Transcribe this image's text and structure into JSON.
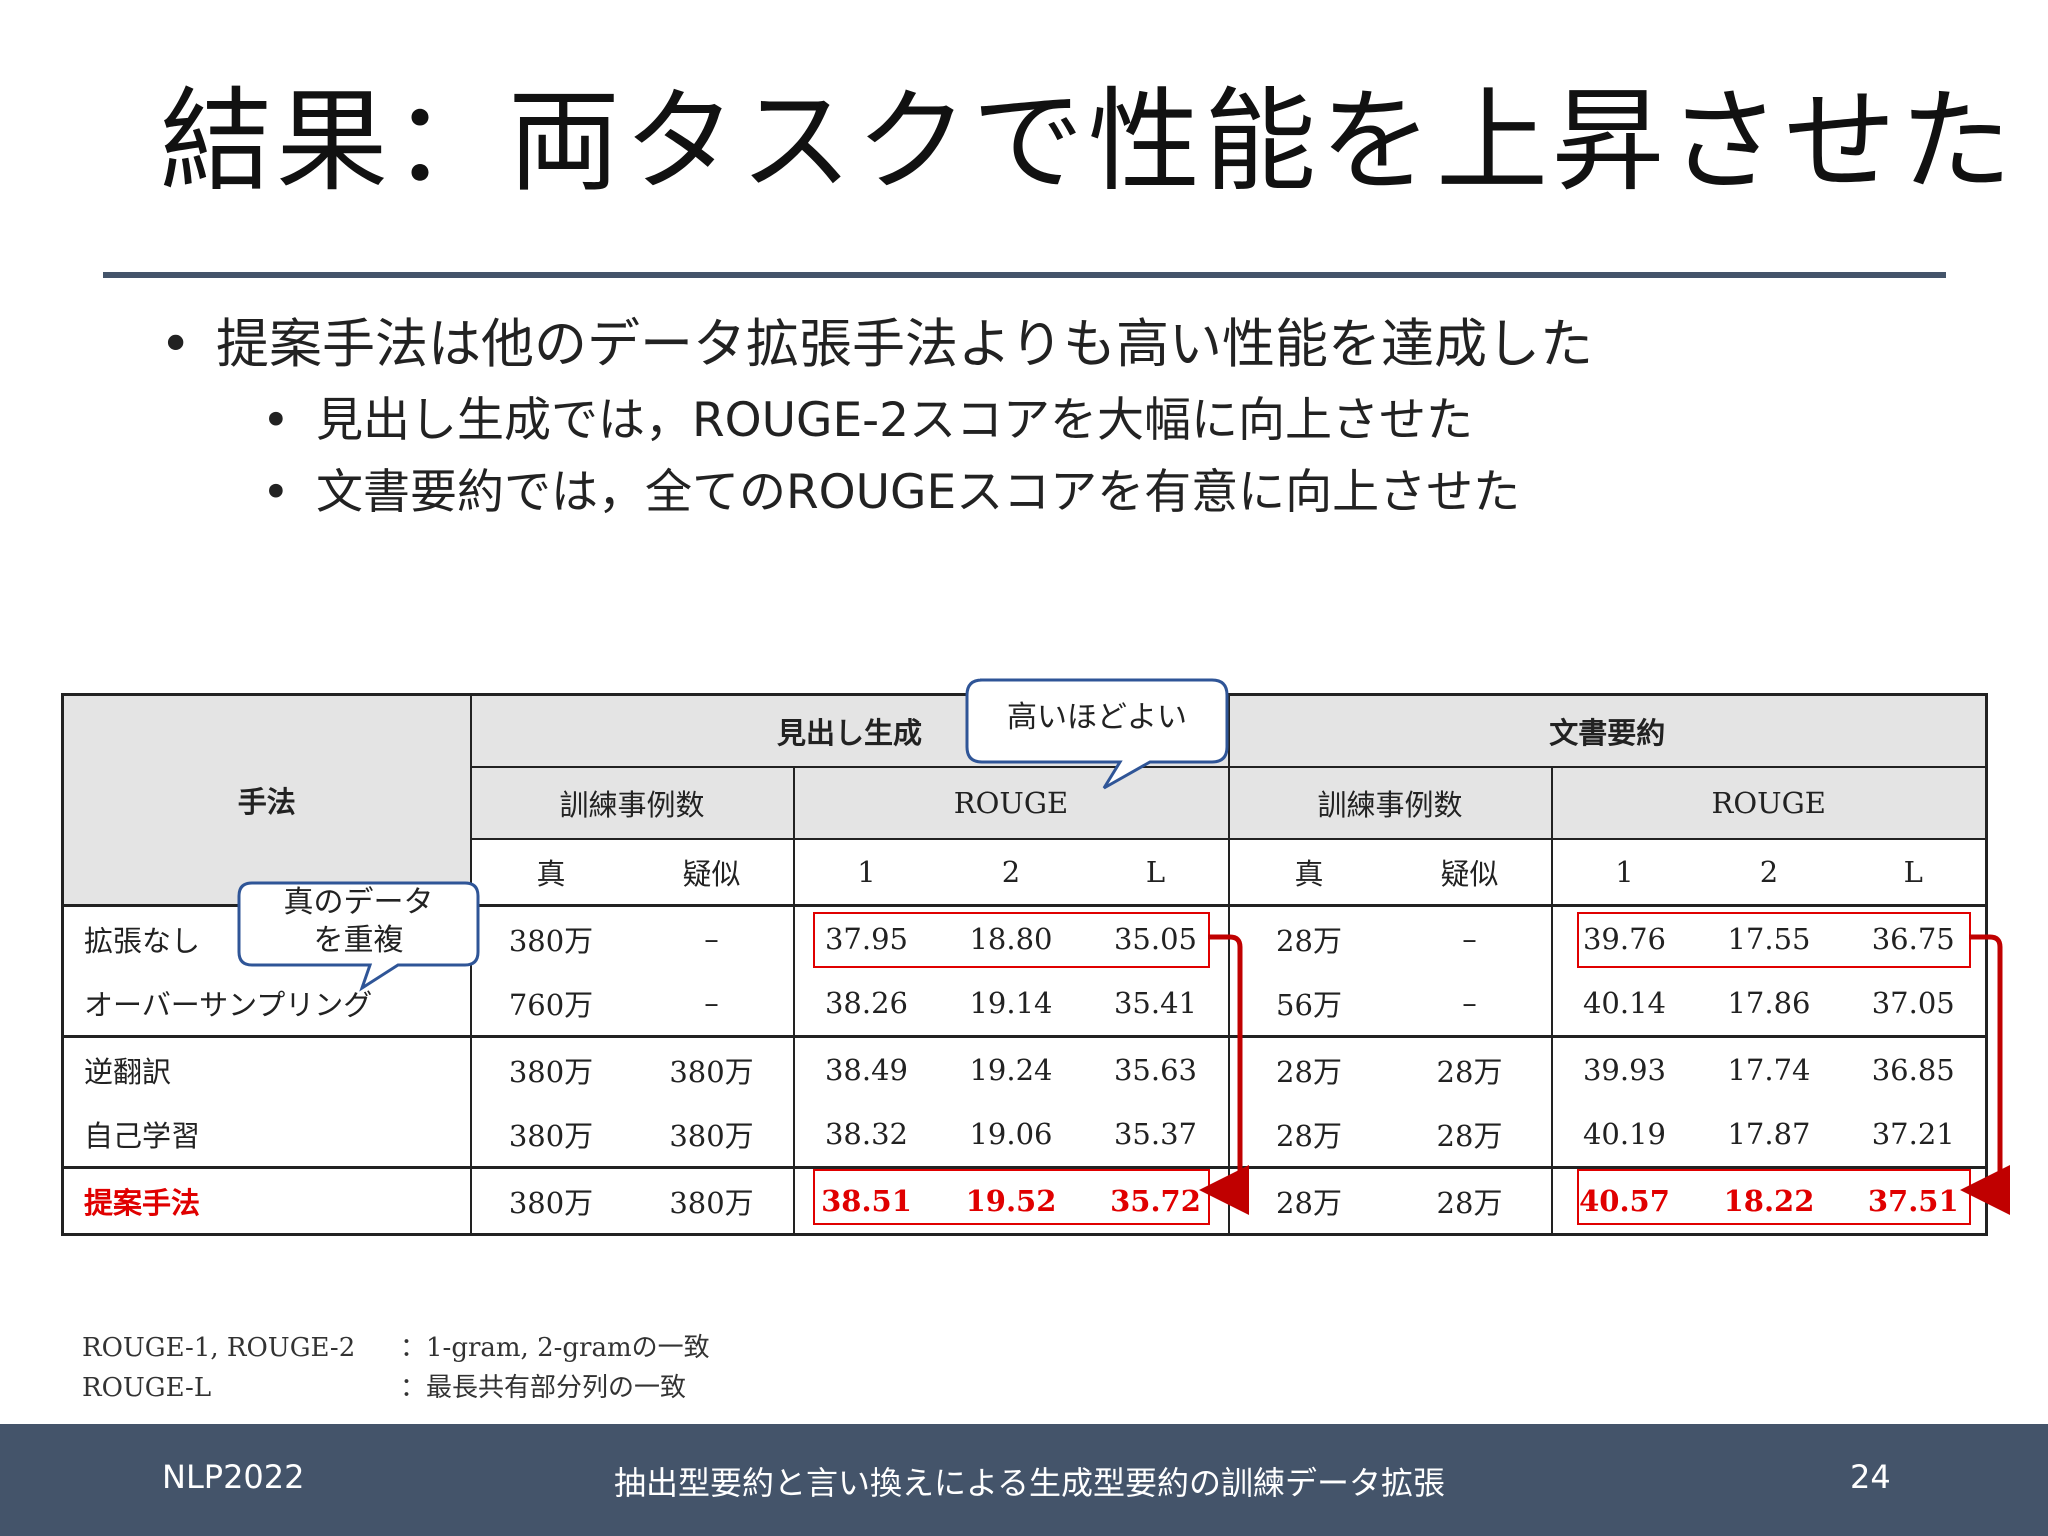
{
  "slide": {
    "title": "結果：両タスクで性能を上昇させた",
    "bullets": [
      {
        "text": "提案手法は他のデータ拡張手法よりも高い性能を達成した"
      },
      {
        "text": "見出し生成では，ROUGE-2スコアを大幅に向上させた"
      },
      {
        "text": "文書要約では，全てのROUGEスコアを有意に向上させた"
      }
    ]
  },
  "table": {
    "method_header": "手法",
    "task1": "見出し生成",
    "task2": "文書要約",
    "train_count_header": "訓練事例数",
    "rouge_header": "ROUGE",
    "sub_true": "真",
    "sub_pseudo": "疑似",
    "sub_1": "1",
    "sub_2": "2",
    "sub_L": "L",
    "rows": [
      {
        "method": "拡張なし",
        "h_true": "380万",
        "h_pseudo": "–",
        "h_r1": "37.95",
        "h_r2": "18.80",
        "h_rl": "35.05",
        "s_true": "28万",
        "s_pseudo": "–",
        "s_r1": "39.76",
        "s_r2": "17.55",
        "s_rl": "36.75"
      },
      {
        "method": "オーバーサンプリング",
        "h_true": "760万",
        "h_pseudo": "–",
        "h_r1": "38.26",
        "h_r2": "19.14",
        "h_rl": "35.41",
        "s_true": "56万",
        "s_pseudo": "–",
        "s_r1": "40.14",
        "s_r2": "17.86",
        "s_rl": "37.05"
      },
      {
        "method": "逆翻訳",
        "h_true": "380万",
        "h_pseudo": "380万",
        "h_r1": "38.49",
        "h_r2": "19.24",
        "h_rl": "35.63",
        "s_true": "28万",
        "s_pseudo": "28万",
        "s_r1": "39.93",
        "s_r2": "17.74",
        "s_rl": "36.85"
      },
      {
        "method": "自己学習",
        "h_true": "380万",
        "h_pseudo": "380万",
        "h_r1": "38.32",
        "h_r2": "19.06",
        "h_rl": "35.37",
        "s_true": "28万",
        "s_pseudo": "28万",
        "s_r1": "40.19",
        "s_r2": "17.87",
        "s_rl": "37.21"
      },
      {
        "method": "提案手法",
        "h_true": "380万",
        "h_pseudo": "380万",
        "h_r1": "38.51",
        "h_r2": "19.52",
        "h_rl": "35.72",
        "s_true": "28万",
        "s_pseudo": "28万",
        "s_r1": "40.57",
        "s_r2": "18.22",
        "s_rl": "37.51"
      }
    ]
  },
  "callouts": {
    "higher_better": "高いほどよい",
    "dup_line1": "真のデータ",
    "dup_line2": "を重複"
  },
  "footnotes": [
    {
      "key": "ROUGE-1, ROUGE-2",
      "value": "：1-gram, 2-gramの一致"
    },
    {
      "key": "ROUGE-L",
      "value": "：最長共有部分列の一致"
    }
  ],
  "footer": {
    "left": "NLP2022",
    "center": "抽出型要約と言い換えによる生成型要約の訓練データ拡張",
    "page": "24"
  },
  "colors": {
    "accent_bar": "#44546a",
    "highlight_red": "#e00000",
    "callout_border": "#2f5597",
    "header_fill": "#e4e4e4",
    "arrow_red": "#c00000"
  }
}
